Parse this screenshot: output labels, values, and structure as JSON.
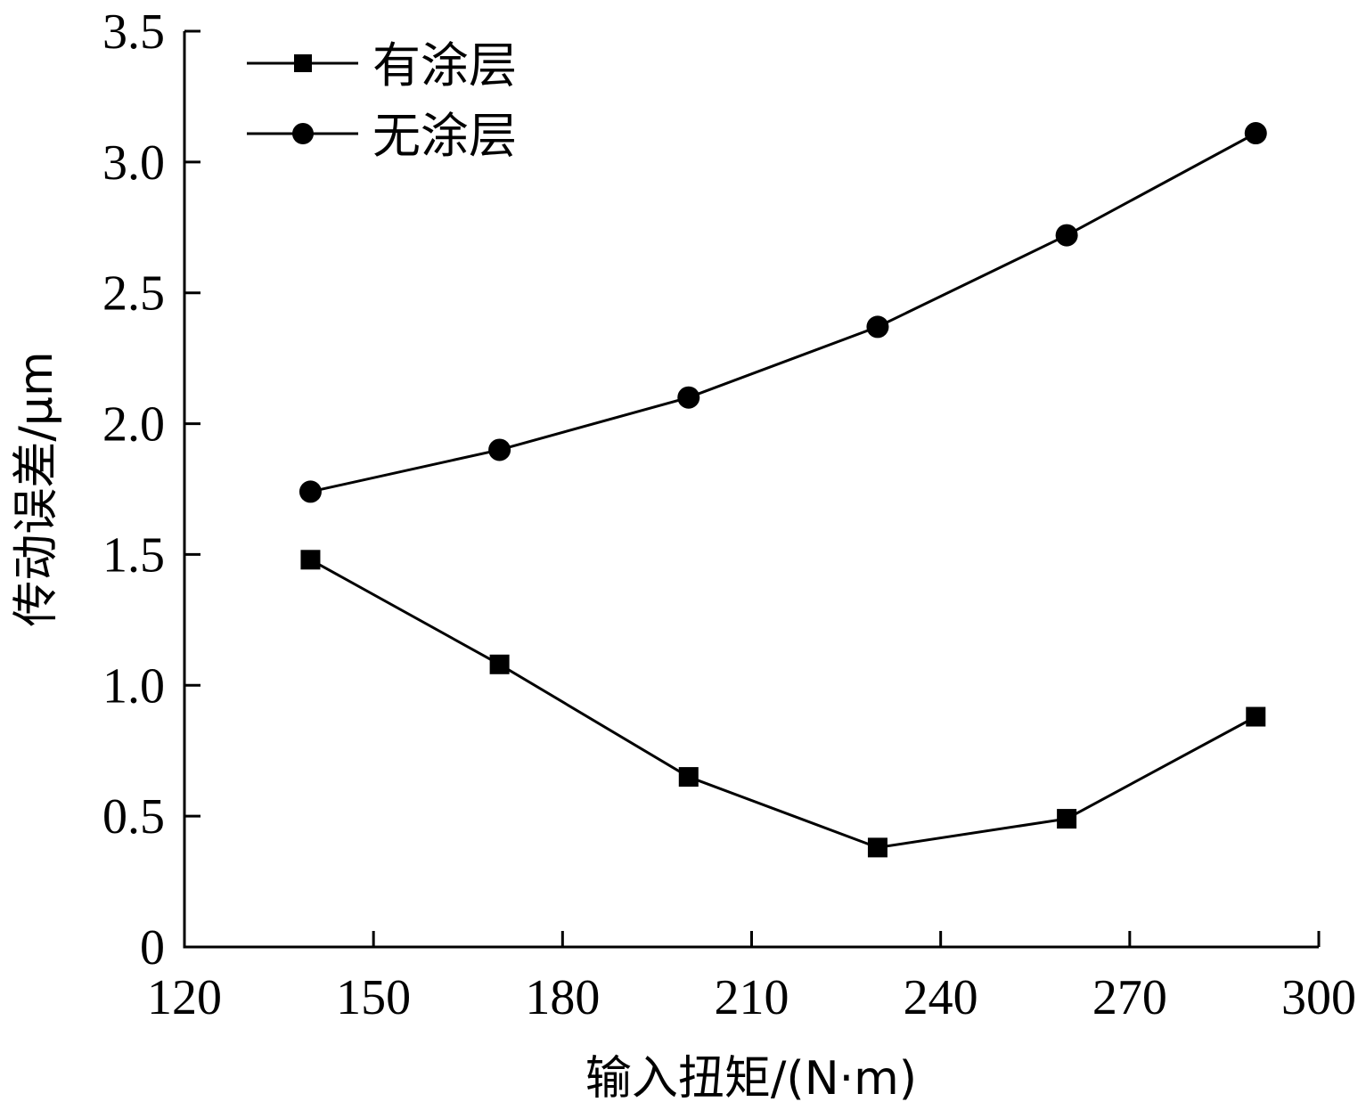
{
  "chart_data": {
    "type": "line",
    "xlabel": "输入扭矩/(N·m)",
    "ylabel": "传动误差/μm",
    "xlim": [
      120,
      300
    ],
    "ylim": [
      0,
      3.5
    ],
    "xticks": [
      "120",
      "150",
      "180",
      "210",
      "240",
      "270",
      "300"
    ],
    "yticks": [
      "0",
      "0.5",
      "1.0",
      "1.5",
      "2.0",
      "2.5",
      "3.0",
      "3.5"
    ],
    "legend_position": "top-left",
    "x": [
      140,
      170,
      200,
      230,
      260,
      290
    ],
    "series": [
      {
        "name": "有涂层",
        "marker": "square",
        "values": [
          1.48,
          1.08,
          0.65,
          0.38,
          0.49,
          0.88
        ]
      },
      {
        "name": "无涂层",
        "marker": "circle",
        "values": [
          1.74,
          1.9,
          2.1,
          2.37,
          2.72,
          3.11
        ]
      }
    ],
    "colors": {
      "line": "#000000",
      "background": "#ffffff"
    }
  }
}
